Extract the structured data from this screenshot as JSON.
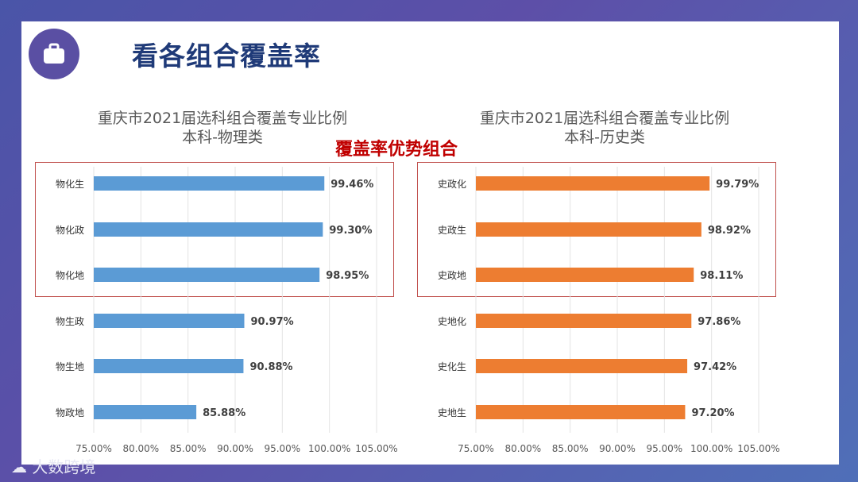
{
  "title": "看各组合覆盖率",
  "highlight_label": "覆盖率优势组合",
  "watermark": "大数跨境",
  "colors": {
    "physics": "#5b9bd5",
    "history": "#ed7d31",
    "box": "#c0504d"
  },
  "chart_data": [
    {
      "type": "bar",
      "orientation": "horizontal",
      "title": "重庆市2021届选科组合覆盖专业比例",
      "subtitle": "本科-物理类",
      "categories": [
        "物化生",
        "物化政",
        "物化地",
        "物生政",
        "物生地",
        "物政地"
      ],
      "values": [
        99.46,
        99.3,
        98.95,
        90.97,
        90.88,
        85.88
      ],
      "value_labels": [
        "99.46%",
        "99.30%",
        "98.95%",
        "90.97%",
        "90.88%",
        "85.88%"
      ],
      "xlim": [
        75,
        105
      ],
      "xticks": [
        "75.00%",
        "80.00%",
        "85.00%",
        "90.00%",
        "95.00%",
        "100.00%",
        "105.00%"
      ],
      "highlighted_count": 3
    },
    {
      "type": "bar",
      "orientation": "horizontal",
      "title": "重庆市2021届选科组合覆盖专业比例",
      "subtitle": "本科-历史类",
      "categories": [
        "史政化",
        "史政生",
        "史政地",
        "史地化",
        "史化生",
        "史地生"
      ],
      "values": [
        99.79,
        98.92,
        98.11,
        97.86,
        97.42,
        97.2
      ],
      "value_labels": [
        "99.79%",
        "98.92%",
        "98.11%",
        "97.86%",
        "97.42%",
        "97.20%"
      ],
      "xlim": [
        75,
        105
      ],
      "xticks": [
        "75.00%",
        "80.00%",
        "85.00%",
        "90.00%",
        "95.00%",
        "100.00%",
        "105.00%"
      ],
      "highlighted_count": 3
    }
  ]
}
